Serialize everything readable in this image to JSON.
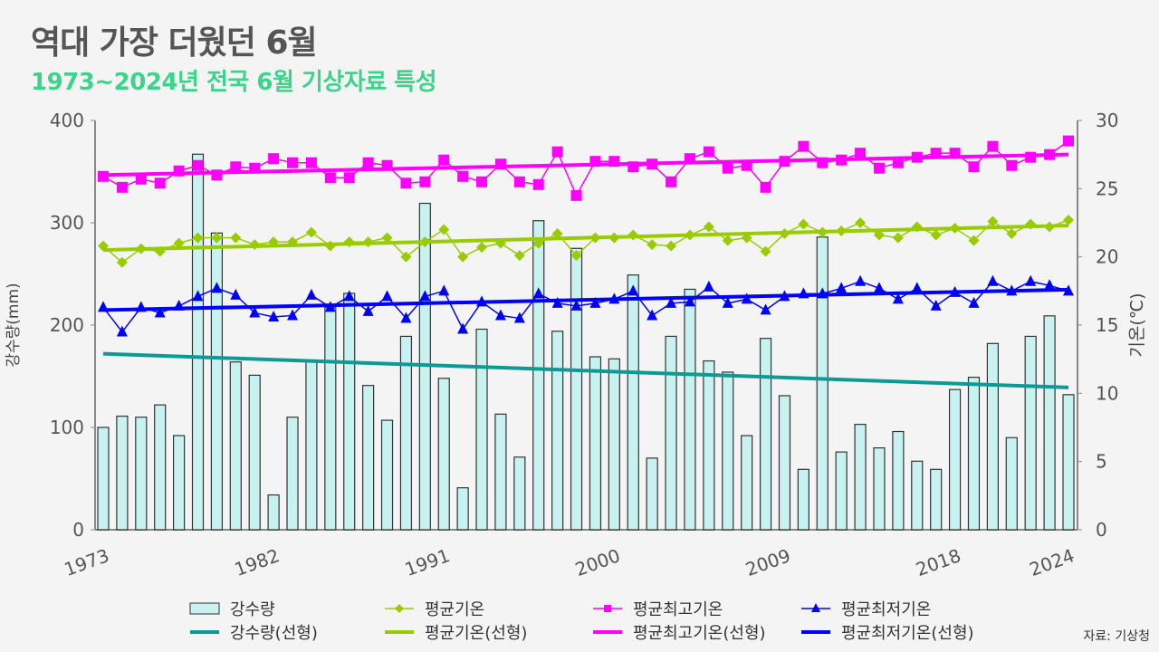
{
  "title": "역대 가장 더웠던 6월",
  "subtitle": "1973~2024년 전국 6월 기상자료 특성",
  "source": "자료: 기상청",
  "colors": {
    "precip_fill": "#c8f2f0",
    "precip_trend": "#0e9a94",
    "avg": "#99cc00",
    "max": "#ff00ff",
    "min": "#0000ff"
  },
  "chart_data": {
    "type": "bar+line",
    "x_start": 1973,
    "x_end": 2024,
    "x_tick_labels": [
      "1973",
      "1982",
      "1991",
      "2000",
      "2009",
      "2018",
      "2024"
    ],
    "y_left": {
      "label": "강수량(mm)",
      "range": [
        0,
        400
      ],
      "ticks": [
        "0",
        "100",
        "200",
        "300",
        "400"
      ]
    },
    "y_right": {
      "label": "기온(℃)",
      "range": [
        0,
        30
      ],
      "ticks": [
        "0",
        "5",
        "10",
        "15",
        "20",
        "25",
        "30"
      ]
    },
    "series": [
      {
        "name": "강수량",
        "type": "bar",
        "axis": "left",
        "values": [
          100,
          111,
          110,
          122,
          92,
          367,
          290,
          164,
          151,
          34,
          110,
          164,
          217,
          231,
          141,
          107,
          189,
          319,
          148,
          41,
          196,
          113,
          71,
          302,
          194,
          275,
          169,
          167,
          249,
          70,
          189,
          235,
          165,
          154,
          92,
          187,
          131,
          59,
          286,
          76,
          103,
          80,
          96,
          67,
          59,
          137,
          149,
          182,
          90,
          189,
          209,
          132
        ]
      },
      {
        "name": "평균기온",
        "type": "line",
        "axis": "right",
        "marker": "diamond",
        "values": [
          20.8,
          19.6,
          20.6,
          20.4,
          21.0,
          21.4,
          21.4,
          21.4,
          20.9,
          21.1,
          21.1,
          21.8,
          20.8,
          21.1,
          21.1,
          21.4,
          20.0,
          21.1,
          22.0,
          20.0,
          20.7,
          21.0,
          20.1,
          21.0,
          21.7,
          20.1,
          21.4,
          21.4,
          21.6,
          20.9,
          20.8,
          21.6,
          22.2,
          21.2,
          21.4,
          20.4,
          21.7,
          22.4,
          21.8,
          21.9,
          22.5,
          21.6,
          21.4,
          22.2,
          21.6,
          22.1,
          21.2,
          22.6,
          21.7,
          22.4,
          22.2,
          22.7
        ]
      },
      {
        "name": "평균최고기온",
        "type": "line",
        "axis": "right",
        "marker": "square",
        "values": [
          25.9,
          25.1,
          25.7,
          25.4,
          26.3,
          26.7,
          26.0,
          26.6,
          26.5,
          27.2,
          26.9,
          26.9,
          25.8,
          25.8,
          26.9,
          26.7,
          25.4,
          25.5,
          27.1,
          25.9,
          25.5,
          26.8,
          25.5,
          25.3,
          27.7,
          24.5,
          27.0,
          27.0,
          26.6,
          26.8,
          25.5,
          27.2,
          27.7,
          26.5,
          26.7,
          25.1,
          27.0,
          28.1,
          26.9,
          27.1,
          27.6,
          26.5,
          26.9,
          27.3,
          27.6,
          27.6,
          26.6,
          28.1,
          26.7,
          27.3,
          27.5,
          28.5
        ]
      },
      {
        "name": "평균최저기온",
        "type": "line",
        "axis": "right",
        "marker": "triangle",
        "values": [
          16.3,
          14.5,
          16.3,
          15.9,
          16.4,
          17.1,
          17.7,
          17.2,
          15.9,
          15.6,
          15.7,
          17.2,
          16.3,
          17.1,
          16.0,
          17.1,
          15.5,
          17.1,
          17.5,
          14.7,
          16.7,
          15.7,
          15.5,
          17.3,
          16.6,
          16.4,
          16.6,
          16.9,
          17.5,
          15.7,
          16.6,
          16.7,
          17.8,
          16.6,
          16.9,
          16.1,
          17.1,
          17.3,
          17.3,
          17.7,
          18.2,
          17.7,
          16.9,
          17.7,
          16.4,
          17.4,
          16.6,
          18.2,
          17.5,
          18.2,
          17.9,
          17.5
        ]
      }
    ],
    "trends": [
      {
        "name": "강수량(선형)",
        "axis": "left",
        "start": 172,
        "end": 139
      },
      {
        "name": "평균기온(선형)",
        "axis": "right",
        "start": 20.5,
        "end": 22.3
      },
      {
        "name": "평균최고기온(선형)",
        "axis": "right",
        "start": 26.0,
        "end": 27.5
      },
      {
        "name": "평균최저기온(선형)",
        "axis": "right",
        "start": 16.1,
        "end": 17.6
      }
    ]
  }
}
